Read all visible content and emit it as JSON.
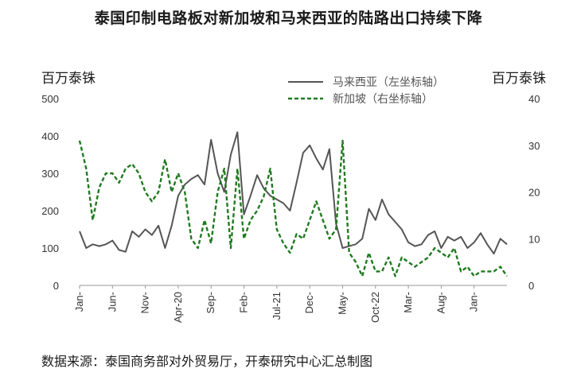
{
  "title": "泰国印制电路板对新加坡和马来西亚的陆路出口持续下降",
  "left_unit": "百万泰铢",
  "right_unit": "百万泰铢",
  "source": "数据来源：泰国商务部对外贸易厅，开泰研究中心汇总制图",
  "colors": {
    "malaysia": "#555555",
    "singapore": "#1f7a1f",
    "axis": "#999999"
  },
  "chart_data": {
    "type": "line",
    "title": "泰国印制电路板对新加坡和马来西亚的陆路出口持续下降",
    "x_tick_labels": [
      "Jan-",
      "Jun-",
      "Nov-",
      "Apr-20",
      "Sep-",
      "Feb-",
      "Jul-21",
      "Dec-",
      "May-",
      "Oct-22",
      "Mar-",
      "Aug-",
      "Jan-"
    ],
    "x_tick_positions": [
      0,
      5,
      10,
      15,
      20,
      25,
      30,
      35,
      40,
      45,
      50,
      55,
      60
    ],
    "left_axis": {
      "ticks": [
        "0",
        "100",
        "200",
        "300",
        "400",
        "500"
      ],
      "range": [
        0,
        500
      ]
    },
    "right_axis": {
      "ticks": [
        "0",
        "10",
        "20",
        "30",
        "40"
      ],
      "range": [
        0,
        40
      ]
    },
    "legend_position": "top-right",
    "series": [
      {
        "name": "马来西亚（左坐标轴）",
        "axis": "left",
        "style": "solid",
        "values": [
          145,
          100,
          110,
          105,
          110,
          120,
          95,
          90,
          145,
          130,
          150,
          135,
          160,
          100,
          160,
          240,
          270,
          285,
          295,
          270,
          390,
          300,
          250,
          350,
          410,
          190,
          240,
          295,
          260,
          240,
          230,
          220,
          200,
          275,
          355,
          375,
          340,
          310,
          365,
          165,
          100,
          105,
          110,
          125,
          205,
          175,
          230,
          190,
          170,
          150,
          115,
          105,
          110,
          135,
          145,
          100,
          130,
          120,
          130,
          100,
          115,
          140,
          110,
          85,
          125,
          110
        ]
      },
      {
        "name": "新加坡（右坐标轴）",
        "axis": "right",
        "style": "dashed",
        "values": [
          31,
          25,
          14,
          21,
          24,
          24,
          22,
          25,
          26,
          24,
          20,
          18,
          20,
          27,
          20,
          24,
          20,
          10,
          8,
          14,
          9,
          20,
          25,
          8,
          25,
          10,
          14,
          16,
          19,
          25,
          12,
          9,
          7,
          11,
          10,
          14,
          18,
          14,
          10,
          12,
          31,
          7,
          5,
          2,
          7,
          3,
          3,
          6,
          2,
          6,
          5,
          4,
          5,
          6,
          8,
          7,
          6,
          8,
          3,
          4,
          2,
          3,
          3,
          3,
          4,
          2
        ]
      }
    ]
  }
}
